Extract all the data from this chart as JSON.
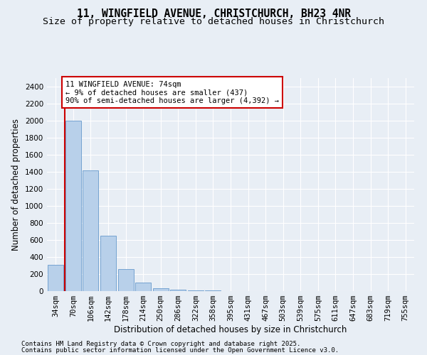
{
  "title_line1": "11, WINGFIELD AVENUE, CHRISTCHURCH, BH23 4NR",
  "title_line2": "Size of property relative to detached houses in Christchurch",
  "xlabel": "Distribution of detached houses by size in Christchurch",
  "ylabel": "Number of detached properties",
  "categories": [
    "34sqm",
    "70sqm",
    "106sqm",
    "142sqm",
    "178sqm",
    "214sqm",
    "250sqm",
    "286sqm",
    "322sqm",
    "358sqm",
    "395sqm",
    "431sqm",
    "467sqm",
    "503sqm",
    "539sqm",
    "575sqm",
    "611sqm",
    "647sqm",
    "683sqm",
    "719sqm",
    "755sqm"
  ],
  "values": [
    310,
    2000,
    1420,
    650,
    260,
    100,
    35,
    20,
    12,
    5,
    1,
    0,
    0,
    0,
    0,
    0,
    0,
    0,
    0,
    0,
    0
  ],
  "bar_color": "#b8d0ea",
  "bar_edge_color": "#6699cc",
  "vline_x": 0.5,
  "vline_color": "#cc0000",
  "annotation_box_text": "11 WINGFIELD AVENUE: 74sqm\n← 9% of detached houses are smaller (437)\n90% of semi-detached houses are larger (4,392) →",
  "box_edge_color": "#cc0000",
  "ylim": [
    0,
    2500
  ],
  "yticks": [
    0,
    200,
    400,
    600,
    800,
    1000,
    1200,
    1400,
    1600,
    1800,
    2000,
    2200,
    2400
  ],
  "bg_color": "#e8eef5",
  "plot_bg_color": "#e8eef5",
  "grid_color": "#ffffff",
  "footer_line1": "Contains HM Land Registry data © Crown copyright and database right 2025.",
  "footer_line2": "Contains public sector information licensed under the Open Government Licence v3.0.",
  "title_fontsize": 10.5,
  "subtitle_fontsize": 9.5,
  "axis_label_fontsize": 8.5,
  "tick_fontsize": 7.5,
  "annotation_fontsize": 7.5,
  "footer_fontsize": 6.5
}
